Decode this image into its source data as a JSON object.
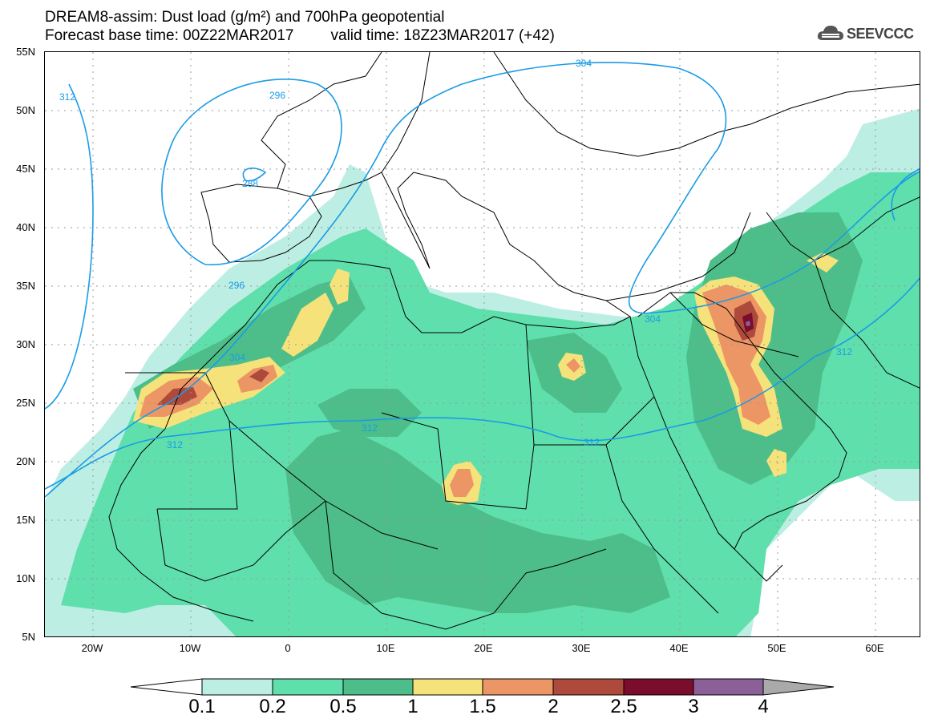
{
  "header": {
    "line1": "DREAM8-assim: Dust load (g/m²) and 700hPa geopotential",
    "line2_base": "Forecast base time: 00Z22MAR2017",
    "line2_valid": "valid time: 18Z23MAR2017 (+42)"
  },
  "logo": {
    "text": "SEEVCCC",
    "icon": "cloud-logo-icon"
  },
  "map": {
    "lat_labels": [
      "55N",
      "50N",
      "45N",
      "40N",
      "35N",
      "30N",
      "25N",
      "20N",
      "15N",
      "10N",
      "5N"
    ],
    "lon_labels": [
      "20W",
      "10W",
      "0",
      "10E",
      "20E",
      "30E",
      "40E",
      "50E",
      "60E"
    ],
    "contour_labels": [
      "312",
      "296",
      "288",
      "296",
      "304",
      "304",
      "312",
      "312",
      "312",
      "304",
      "312"
    ]
  },
  "colorbar": {
    "labels": [
      "0.1",
      "0.2",
      "0.5",
      "1",
      "1.5",
      "2",
      "2.5",
      "3",
      "4"
    ],
    "colors": [
      "#ffffff",
      "#bdeee3",
      "#5fdfac",
      "#4dbe8a",
      "#f6e27a",
      "#ec9565",
      "#ad4a3c",
      "#7a0c2c",
      "#8b6098",
      "#aaaaaa"
    ]
  },
  "colors": {
    "contour": "#1a9be6",
    "grid": "#999999",
    "border": "#000000"
  }
}
